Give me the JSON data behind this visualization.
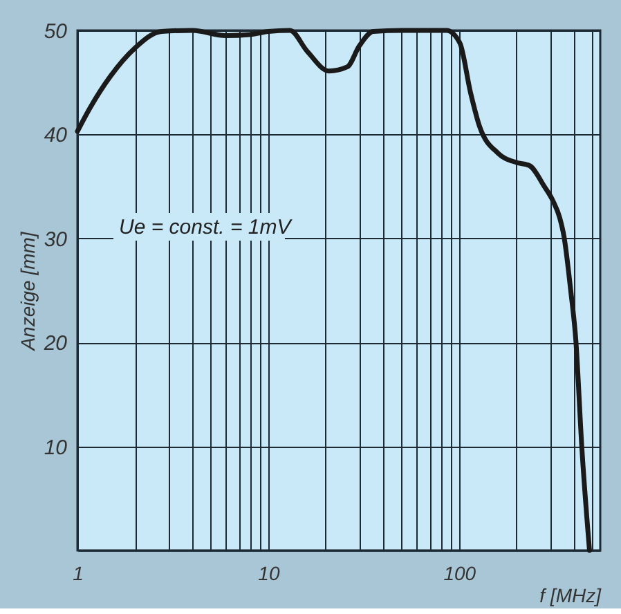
{
  "chart_data": {
    "type": "line",
    "xlabel": "f [MHz]",
    "ylabel": "Anzeige [mm]",
    "annotations": [
      "Ue = const. = 1mV"
    ],
    "log": "x",
    "grid": true,
    "marker": "none",
    "line_style": "solid",
    "xlim": [
      1,
      550
    ],
    "ylim": [
      0,
      50
    ],
    "xticks": [
      1,
      {
        "value": 2,
        "label": null
      },
      {
        "value": 3,
        "label": null
      },
      {
        "value": 4,
        "label": null
      },
      {
        "value": 5,
        "label": null
      },
      {
        "value": 6,
        "label": null
      },
      {
        "value": 7,
        "label": null
      },
      {
        "value": 8,
        "label": null
      },
      {
        "value": 9,
        "label": null
      },
      10,
      {
        "value": 20,
        "label": null
      },
      {
        "value": 30,
        "label": null
      },
      {
        "value": 40,
        "label": null
      },
      {
        "value": 50,
        "label": null
      },
      {
        "value": 60,
        "label": null
      },
      {
        "value": 70,
        "label": null
      },
      {
        "value": 80,
        "label": null
      },
      {
        "value": 90,
        "label": null
      },
      100,
      {
        "value": 200,
        "label": null
      },
      {
        "value": 300,
        "label": null
      },
      {
        "value": 400,
        "label": null
      },
      {
        "value": 500,
        "label": null
      }
    ],
    "yticks": [
      {
        "value": 0,
        "label": null
      },
      10,
      20,
      30,
      40,
      50
    ],
    "x": [
      1,
      1.16,
      1.49,
      2,
      2.76,
      4,
      6,
      8,
      10,
      13,
      16,
      20.8,
      26,
      30,
      35.5,
      50,
      86,
      101,
      115,
      128,
      160,
      200,
      234,
      280,
      311,
      337,
      355,
      385,
      410,
      440,
      483
    ],
    "series": [
      {
        "color": "#1a1a1a",
        "values": [
          40.3,
          42.5,
          45.6,
          48.3,
          49.9,
          50,
          49.5,
          49.6,
          49.9,
          50,
          48,
          46.1,
          46.5,
          48.5,
          49.9,
          50,
          50,
          48.8,
          44,
          40.8,
          38.2,
          37.3,
          37,
          35,
          33.6,
          32,
          30.2,
          25,
          20.1,
          10,
          0
        ]
      }
    ]
  }
}
